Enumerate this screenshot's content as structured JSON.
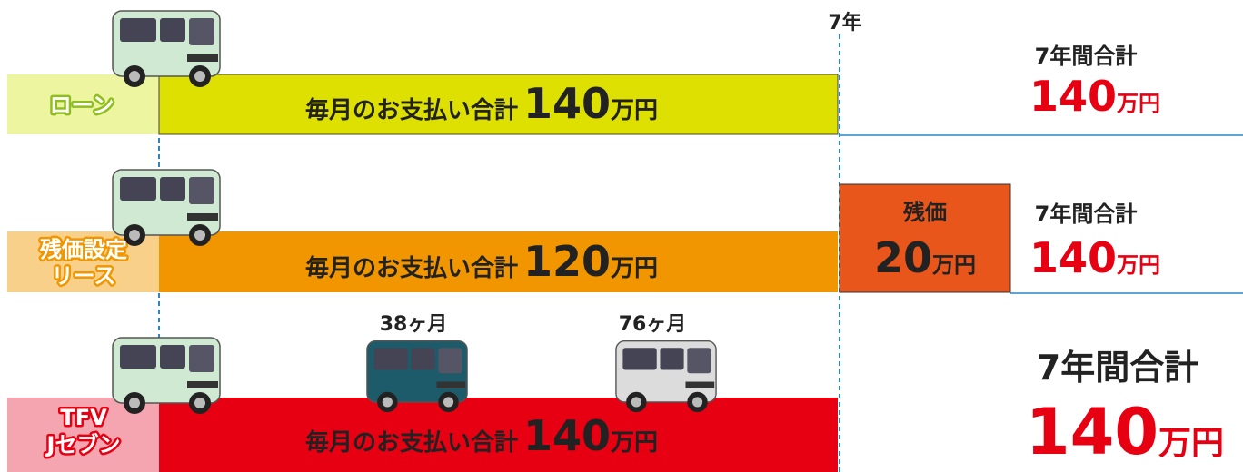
{
  "axis_label": "7年",
  "rows": [
    {
      "label_lines": [
        "ローン"
      ],
      "bar_text": "毎月のお支払い合計",
      "amount": "140",
      "unit": "万円",
      "total_label": "7年間合計",
      "total_amount": "140",
      "total_unit": "万円"
    },
    {
      "label_lines": [
        "残価設定",
        "リース"
      ],
      "bar_text": "毎月のお支払い合計",
      "amount": "120",
      "unit": "万円",
      "residual": {
        "label": "残価",
        "amount": "20",
        "unit": "万円"
      },
      "total_label": "7年間合計",
      "total_amount": "140",
      "total_unit": "万円"
    },
    {
      "label_lines": [
        "TFV",
        "Jセブン"
      ],
      "bar_text": "毎月のお支払い合計",
      "amount": "140",
      "unit": "万円",
      "milestones": [
        "38ヶ月",
        "76ヶ月"
      ],
      "total_label": "7年間合計",
      "total_amount": "140",
      "total_unit": "万円"
    }
  ]
}
